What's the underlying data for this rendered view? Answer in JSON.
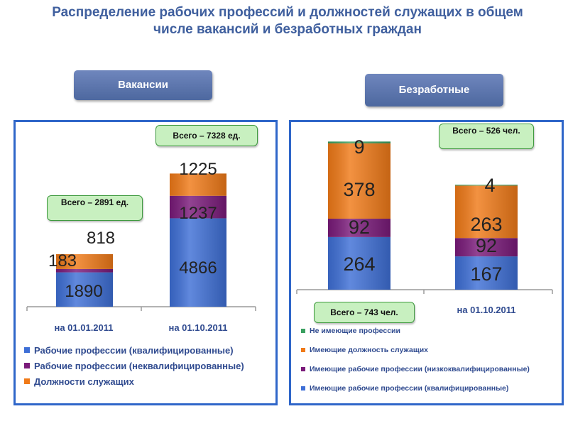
{
  "title": "Распределение рабочих профессий и должностей служащих в общем числе вакансий и безработных граждан",
  "headers": {
    "vacancies": "Вакансии",
    "unemployed": "Безработные"
  },
  "colors": {
    "blue": "#3e6fd6",
    "purple": "#7a1a7a",
    "orange": "#f07a18",
    "green": "#3aa060"
  },
  "chart_data": [
    {
      "type": "bar",
      "stacked": true,
      "categories": [
        "на 01.01.2011",
        "на 01.10.2011"
      ],
      "totals": [
        "Всего – 2891 ед.",
        "Всего – 7328 ед."
      ],
      "series": [
        {
          "name": "Рабочие профессии (квалифицированные)",
          "values": [
            1890,
            4866
          ],
          "color": "#3e6fd6"
        },
        {
          "name": "Рабочие профессии (неквалифицированные)",
          "values": [
            183,
            1237
          ],
          "color": "#7a1a7a"
        },
        {
          "name": "Должности служащих",
          "values": [
            818,
            1225
          ],
          "color": "#f07a18"
        }
      ]
    },
    {
      "type": "bar",
      "stacked": true,
      "categories": [
        "",
        "на 01.10.2011"
      ],
      "totals": [
        "Всего – 743 чел.",
        "Всего – 526 чел."
      ],
      "series": [
        {
          "name": "Имеющие рабочие профессии (квалифицированные)",
          "values": [
            264,
            167
          ],
          "color": "#3e6fd6"
        },
        {
          "name": "Имеющие рабочие профессии (низкоквалифицированные)",
          "values": [
            92,
            92
          ],
          "color": "#7a1a7a"
        },
        {
          "name": "Имеющие должность служащих",
          "values": [
            378,
            263
          ],
          "color": "#f07a18"
        },
        {
          "name": "Не имеющие профессии",
          "values": [
            9,
            4
          ],
          "color": "#3aa060"
        }
      ]
    }
  ]
}
